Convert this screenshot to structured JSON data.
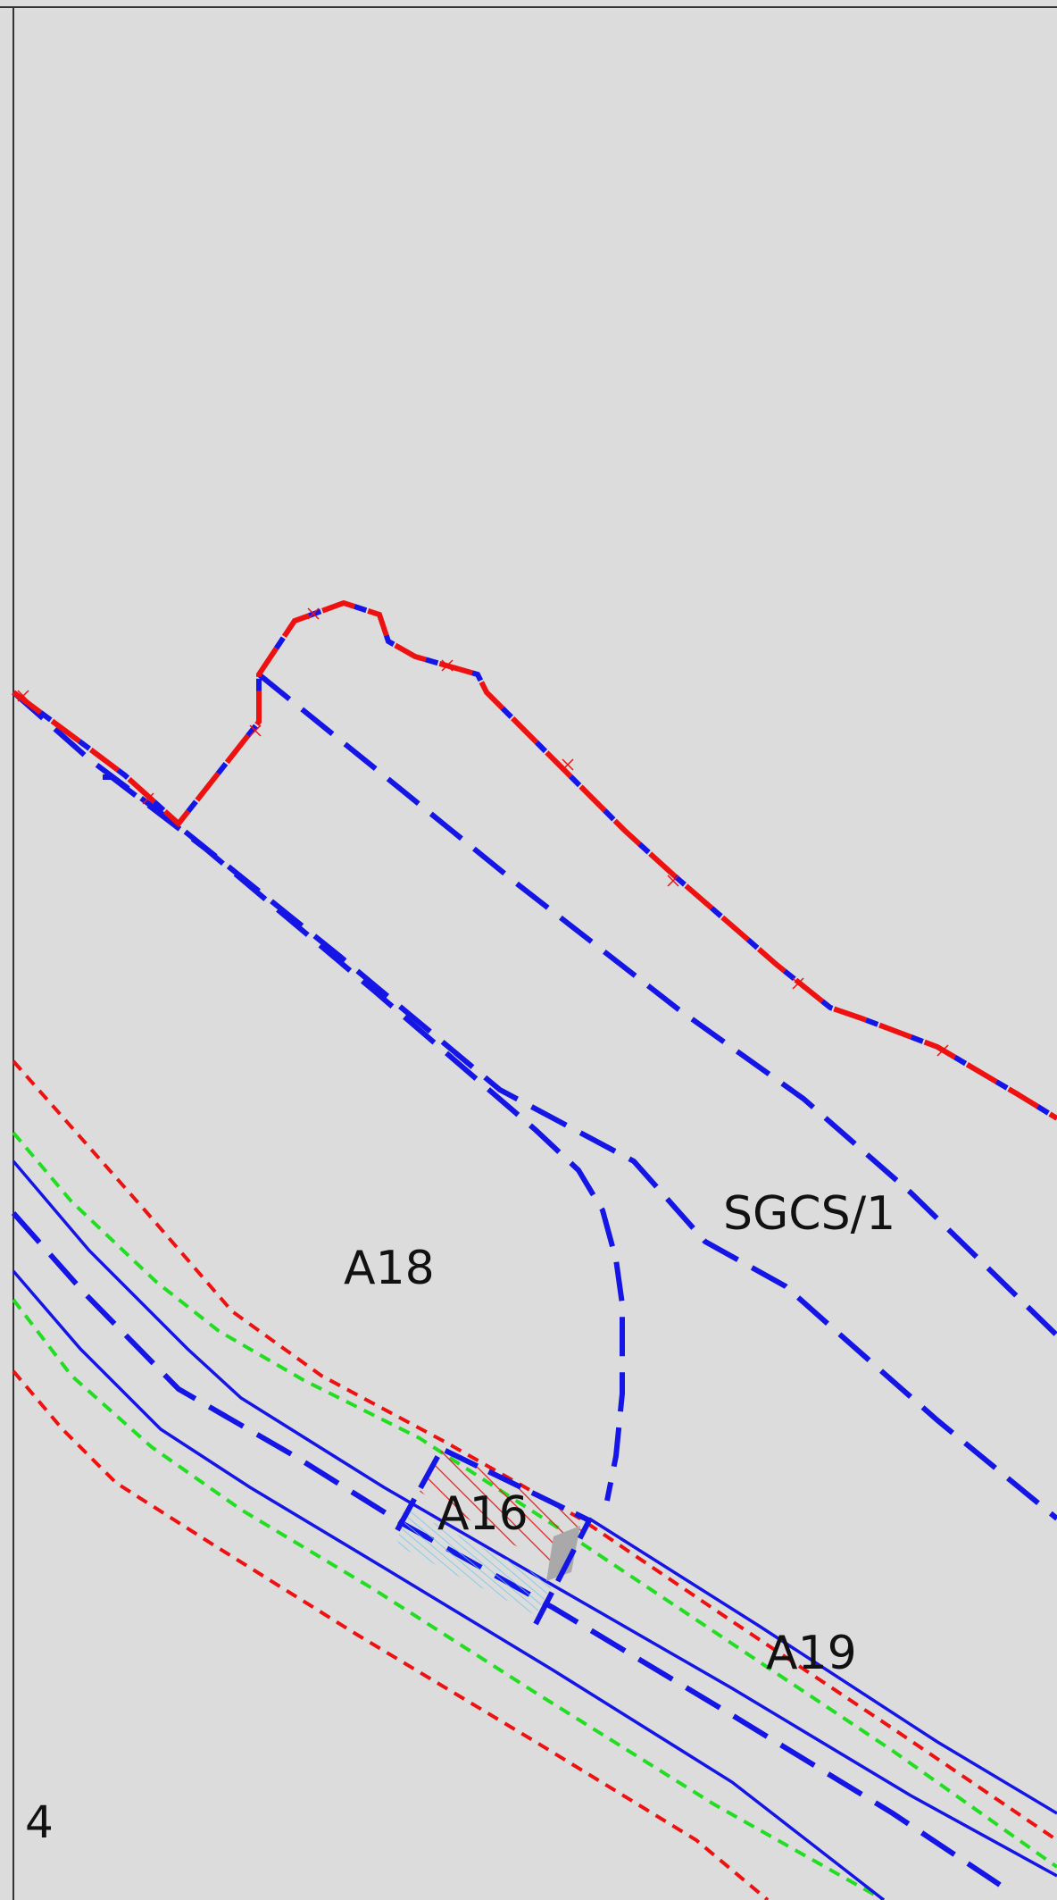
{
  "labels": {
    "sgcs": "SGCS/1",
    "a18": "A18",
    "a16": "A16",
    "a19": "A19",
    "sheet_number": "4"
  },
  "colors": {
    "background": "#dcdcdc",
    "frame": "#333333",
    "red_boundary": "#ee1111",
    "blue_line": "#1515e6",
    "green_line": "#22dd22",
    "red_hatch": "#e02020",
    "cyan_hatch": "#6fc6e6",
    "grey_fill": "#a9a9a9"
  }
}
